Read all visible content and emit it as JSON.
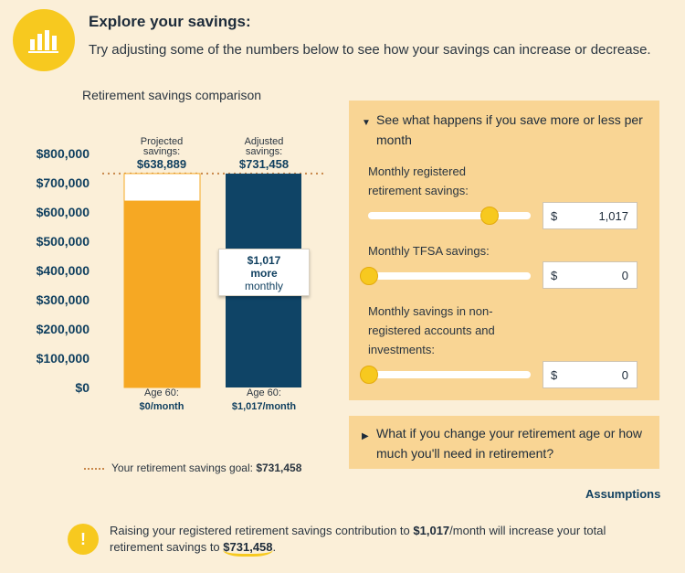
{
  "header": {
    "title": "Explore your savings:",
    "subtitle": "Try adjusting some of the numbers below to see how your savings can increase or decrease."
  },
  "chart": {
    "title": "Retirement savings comparison",
    "y_ticks": [
      "$800,000",
      "$700,000",
      "$600,000",
      "$500,000",
      "$400,000",
      "$300,000",
      "$200,000",
      "$100,000",
      "$0"
    ],
    "bars": [
      {
        "head_label_1": "Projected",
        "head_label_2": "savings:",
        "amount": "$638,889",
        "foot_1": "Age 60:",
        "foot_2": "$0/month"
      },
      {
        "head_label_1": "Adjusted",
        "head_label_2": "savings:",
        "amount": "$731,458",
        "foot_1": "Age 60:",
        "foot_2": "$1,017/month"
      }
    ],
    "callout": {
      "line1": "$1,017",
      "line2": "more",
      "line3": "monthly"
    },
    "legend": {
      "label": "Your retirement savings goal:",
      "value": "$731,458"
    }
  },
  "chart_data": {
    "type": "bar",
    "title": "Retirement savings comparison",
    "categories": [
      "Projected savings",
      "Adjusted savings"
    ],
    "values": [
      638889,
      731458
    ],
    "goal": 731458,
    "ylim": [
      0,
      800000
    ],
    "colors": [
      "#f6a823",
      "#0f4466"
    ]
  },
  "panel": {
    "heading": "See what happens if you save more or less per month",
    "fields": [
      {
        "label": "Monthly registered retirement savings:",
        "currency": "$",
        "value": "1,017",
        "slider_fraction": 0.74
      },
      {
        "label": "Monthly TFSA savings:",
        "currency": "$",
        "value": "0",
        "slider_fraction": 0.0
      },
      {
        "label": "Monthly savings in non-registered accounts and investments:",
        "currency": "$",
        "value": "0",
        "slider_fraction": 0.0
      }
    ]
  },
  "panel2": {
    "heading": "What if you change your retirement age or how much you'll need in retirement?"
  },
  "assumptions_label": "Assumptions",
  "note": {
    "text_1": "Raising your registered retirement savings contribution to ",
    "amount": "$1,017",
    "text_2": "/month will increase your total retirement savings to ",
    "total": "$731,458",
    "text_3": "."
  },
  "colors": {
    "accent": "#f7c91f",
    "navy": "#0f4466",
    "orange": "#f6a823",
    "panel": "#f9d594",
    "background": "#fbefd8"
  }
}
